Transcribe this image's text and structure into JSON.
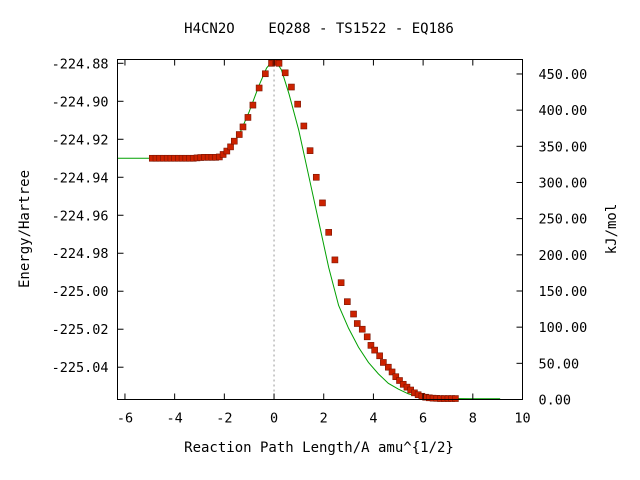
{
  "chart_data": {
    "type": "line",
    "title": "H4CN2O    EQ288 - TS1522 - EQ186",
    "xlabel": "Reaction Path Length/A amu^{1/2}",
    "ylabel": "Energy/Hartree",
    "y2label": "kJ/mol",
    "xlim": [
      -6.3,
      10
    ],
    "ylim": [
      -225.057,
      -224.878
    ],
    "y2lim": [
      0,
      470
    ],
    "x_ticks": [
      "-6",
      "-4",
      "-2",
      "0",
      "2",
      "4",
      "6",
      "8",
      "10"
    ],
    "x_tick_values": [
      -6,
      -4,
      -2,
      0,
      2,
      4,
      6,
      8,
      10
    ],
    "y_ticks": [
      "-224.88",
      "-224.90",
      "-224.92",
      "-224.94",
      "-224.96",
      "-224.98",
      "-225.00",
      "-225.02",
      "-225.04"
    ],
    "y_tick_values": [
      -224.88,
      -224.9,
      -224.92,
      -224.94,
      -224.96,
      -224.98,
      -225.0,
      -225.02,
      -225.04
    ],
    "y2_ticks": [
      "450.00",
      "400.00",
      "350.00",
      "300.00",
      "250.00",
      "200.00",
      "150.00",
      "100.00",
      "50.00",
      "0.00"
    ],
    "y2_tick_values": [
      450,
      400,
      350,
      300,
      250,
      200,
      150,
      100,
      50,
      0
    ],
    "ts_marker_x": 0,
    "colors": {
      "line": "#00a000",
      "marker": "#cc2200",
      "vline": "#999999"
    },
    "line_series": {
      "x": [
        -6.3,
        -4.9,
        -3.0,
        -2.2,
        -1.8,
        -1.4,
        -1.0,
        -0.6,
        -0.3,
        -0.1,
        0.1,
        0.3,
        0.6,
        1.0,
        1.4,
        1.8,
        2.2,
        2.6,
        3.0,
        3.4,
        3.8,
        4.2,
        4.6,
        5.0,
        5.4,
        5.8,
        6.2,
        6.6,
        7.0,
        8.0,
        9.1
      ],
      "y": [
        -224.93,
        -224.93,
        -224.9295,
        -224.9295,
        -224.9255,
        -224.9175,
        -224.9055,
        -224.8915,
        -224.8825,
        -224.8793,
        -224.8793,
        -224.8835,
        -224.896,
        -224.9155,
        -224.9395,
        -224.9635,
        -224.9875,
        -225.0075,
        -225.0195,
        -225.0295,
        -225.0375,
        -225.0435,
        -225.0485,
        -225.0515,
        -225.054,
        -225.0555,
        -225.056,
        -225.0565,
        -225.0565,
        -225.0566,
        -225.0566
      ]
    },
    "marker_series": {
      "x": [
        -4.9,
        -4.75,
        -4.6,
        -4.45,
        -4.3,
        -4.15,
        -4.0,
        -3.85,
        -3.7,
        -3.55,
        -3.4,
        -3.25,
        -3.1,
        -2.95,
        -2.8,
        -2.65,
        -2.5,
        -2.35,
        -2.2,
        -2.05,
        -1.9,
        -1.75,
        -1.6,
        -1.4,
        -1.25,
        -1.05,
        -0.85,
        -0.6,
        -0.35,
        -0.1,
        0.05,
        0.2,
        0.45,
        0.7,
        0.95,
        1.2,
        1.45,
        1.7,
        1.95,
        2.2,
        2.45,
        2.7,
        2.95,
        3.2,
        3.35,
        3.55,
        3.75,
        3.9,
        4.05,
        4.25,
        4.4,
        4.6,
        4.75,
        4.9,
        5.05,
        5.2,
        5.35,
        5.5,
        5.65,
        5.8,
        5.95,
        6.1,
        6.25,
        6.4,
        6.55,
        6.7,
        6.85,
        7.0,
        7.15,
        7.3
      ],
      "y": [
        -224.93,
        -224.93,
        -224.93,
        -224.93,
        -224.93,
        -224.93,
        -224.93,
        -224.93,
        -224.93,
        -224.93,
        -224.93,
        -224.93,
        -224.9298,
        -224.9296,
        -224.9295,
        -224.9295,
        -224.9295,
        -224.9295,
        -224.9293,
        -224.928,
        -224.9262,
        -224.924,
        -224.921,
        -224.9175,
        -224.9135,
        -224.9085,
        -224.902,
        -224.893,
        -224.8855,
        -224.88,
        -224.8795,
        -224.88,
        -224.885,
        -224.8925,
        -224.9015,
        -224.913,
        -224.926,
        -224.94,
        -224.9535,
        -224.969,
        -224.9835,
        -224.9955,
        -225.0055,
        -225.012,
        -225.017,
        -225.02,
        -225.024,
        -225.0285,
        -225.031,
        -225.034,
        -225.0375,
        -225.04,
        -225.0425,
        -225.045,
        -225.047,
        -225.049,
        -225.0505,
        -225.052,
        -225.0535,
        -225.0545,
        -225.0553,
        -225.0558,
        -225.0561,
        -225.0563,
        -225.0564,
        -225.0565,
        -225.0565,
        -225.0565,
        -225.0565,
        -225.0565
      ]
    }
  }
}
